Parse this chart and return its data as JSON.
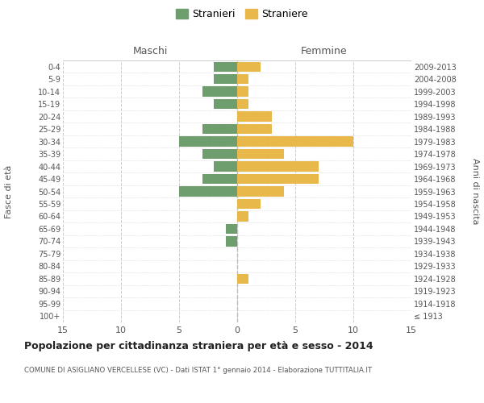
{
  "age_groups": [
    "100+",
    "95-99",
    "90-94",
    "85-89",
    "80-84",
    "75-79",
    "70-74",
    "65-69",
    "60-64",
    "55-59",
    "50-54",
    "45-49",
    "40-44",
    "35-39",
    "30-34",
    "25-29",
    "20-24",
    "15-19",
    "10-14",
    "5-9",
    "0-4"
  ],
  "birth_years": [
    "≤ 1913",
    "1914-1918",
    "1919-1923",
    "1924-1928",
    "1929-1933",
    "1934-1938",
    "1939-1943",
    "1944-1948",
    "1949-1953",
    "1954-1958",
    "1959-1963",
    "1964-1968",
    "1969-1973",
    "1974-1978",
    "1979-1983",
    "1984-1988",
    "1989-1993",
    "1994-1998",
    "1999-2003",
    "2004-2008",
    "2009-2013"
  ],
  "maschi": [
    0,
    0,
    0,
    0,
    0,
    0,
    1,
    1,
    0,
    0,
    5,
    3,
    2,
    3,
    5,
    3,
    0,
    2,
    3,
    2,
    2
  ],
  "femmine": [
    0,
    0,
    0,
    1,
    0,
    0,
    0,
    0,
    1,
    2,
    4,
    7,
    7,
    4,
    10,
    3,
    3,
    1,
    1,
    1,
    2
  ],
  "color_maschi": "#6e9e6e",
  "color_femmine": "#e8b84b",
  "xlim": 15,
  "title": "Popolazione per cittadinanza straniera per età e sesso - 2014",
  "subtitle": "COMUNE DI ASIGLIANO VERCELLESE (VC) - Dati ISTAT 1° gennaio 2014 - Elaborazione TUTTITALIA.IT",
  "xlabel_left": "Maschi",
  "xlabel_right": "Femmine",
  "ylabel_left": "Fasce di età",
  "ylabel_right": "Anni di nascita",
  "legend_stranieri": "Stranieri",
  "legend_straniere": "Straniere",
  "bg_color": "#ffffff",
  "grid_color": "#cccccc",
  "bar_height": 0.8
}
